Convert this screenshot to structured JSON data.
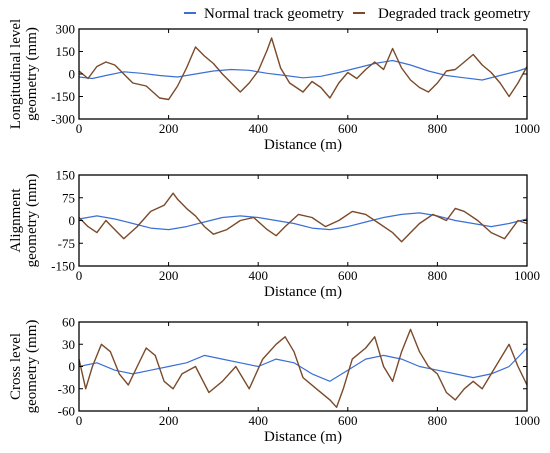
{
  "legend": {
    "normal_label": "Normal track geometry",
    "degraded_label": "Degraded track geometry"
  },
  "colors": {
    "normal": "#3b6fd6",
    "degraded": "#7a4a2a"
  },
  "chart_data": [
    {
      "type": "line",
      "xlabel": "Distance (m)",
      "ylabel_lines": [
        "Longitudinal level",
        "geometry (mm)"
      ],
      "xlim": [
        0,
        1000
      ],
      "ylim": [
        -300,
        300
      ],
      "x_ticks": [
        0,
        200,
        400,
        600,
        800,
        1000
      ],
      "y_ticks": [
        300,
        150,
        0,
        -150,
        -300
      ],
      "series": [
        {
          "name": "Normal track geometry",
          "x": [
            0,
            30,
            60,
            100,
            140,
            180,
            220,
            260,
            300,
            340,
            380,
            420,
            460,
            500,
            540,
            580,
            620,
            660,
            700,
            740,
            780,
            820,
            860,
            900,
            940,
            980,
            1000
          ],
          "y": [
            -20,
            -30,
            -10,
            15,
            5,
            -10,
            -20,
            0,
            20,
            30,
            25,
            5,
            -10,
            -25,
            -15,
            10,
            40,
            70,
            90,
            60,
            20,
            -10,
            -25,
            -40,
            -10,
            20,
            40
          ]
        },
        {
          "name": "Degraded track geometry",
          "x": [
            0,
            20,
            40,
            60,
            80,
            100,
            120,
            150,
            180,
            200,
            220,
            240,
            260,
            280,
            300,
            320,
            340,
            360,
            380,
            400,
            420,
            430,
            450,
            470,
            500,
            520,
            540,
            560,
            580,
            600,
            620,
            640,
            660,
            680,
            700,
            720,
            740,
            760,
            780,
            800,
            820,
            840,
            860,
            880,
            900,
            920,
            940,
            960,
            980,
            1000
          ],
          "y": [
            20,
            -30,
            50,
            80,
            60,
            0,
            -60,
            -80,
            -160,
            -170,
            -80,
            40,
            180,
            120,
            70,
            0,
            -60,
            -120,
            -60,
            20,
            160,
            240,
            40,
            -60,
            -120,
            -50,
            -90,
            -160,
            -60,
            10,
            -30,
            30,
            80,
            30,
            170,
            40,
            -40,
            -90,
            -120,
            -60,
            20,
            30,
            80,
            130,
            60,
            10,
            -60,
            -150,
            -60,
            50
          ]
        }
      ]
    },
    {
      "type": "line",
      "xlabel": "Distance (m)",
      "ylabel_lines": [
        "Alignment",
        "geometry (mm)"
      ],
      "xlim": [
        0,
        1000
      ],
      "ylim": [
        -150,
        150
      ],
      "x_ticks": [
        0,
        200,
        400,
        600,
        800,
        1000
      ],
      "y_ticks": [
        150,
        75,
        0,
        -75,
        -150
      ],
      "series": [
        {
          "name": "Normal track geometry",
          "x": [
            0,
            40,
            80,
            120,
            160,
            200,
            240,
            280,
            320,
            360,
            400,
            440,
            480,
            520,
            560,
            600,
            640,
            680,
            720,
            760,
            800,
            840,
            880,
            920,
            960,
            1000
          ],
          "y": [
            5,
            15,
            5,
            -10,
            -25,
            -30,
            -20,
            -5,
            10,
            15,
            10,
            0,
            -10,
            -25,
            -30,
            -20,
            -5,
            10,
            20,
            25,
            15,
            0,
            -10,
            -20,
            -10,
            5
          ]
        },
        {
          "name": "Degraded track geometry",
          "x": [
            0,
            20,
            40,
            60,
            80,
            100,
            130,
            160,
            190,
            210,
            220,
            240,
            260,
            280,
            300,
            330,
            360,
            390,
            420,
            440,
            460,
            490,
            520,
            550,
            580,
            610,
            640,
            670,
            700,
            720,
            740,
            760,
            790,
            820,
            840,
            860,
            890,
            920,
            950,
            980,
            1000
          ],
          "y": [
            10,
            -20,
            -40,
            0,
            -30,
            -60,
            -20,
            30,
            50,
            90,
            70,
            40,
            15,
            -20,
            -45,
            -30,
            0,
            10,
            -30,
            -50,
            -20,
            20,
            10,
            -20,
            0,
            30,
            20,
            -10,
            -40,
            -70,
            -40,
            -10,
            20,
            0,
            40,
            30,
            0,
            -40,
            -60,
            0,
            -10
          ]
        }
      ]
    },
    {
      "type": "line",
      "xlabel": "Distance (m)",
      "ylabel_lines": [
        "Cross level",
        "geometry (mm)"
      ],
      "xlim": [
        0,
        1000
      ],
      "ylim": [
        -60,
        60
      ],
      "x_ticks": [
        0,
        200,
        400,
        600,
        800,
        1000
      ],
      "y_ticks": [
        60,
        30,
        0,
        -30,
        -60
      ],
      "series": [
        {
          "name": "Normal track geometry",
          "x": [
            0,
            40,
            80,
            120,
            160,
            200,
            240,
            280,
            320,
            360,
            400,
            440,
            480,
            520,
            560,
            600,
            640,
            680,
            720,
            760,
            800,
            840,
            880,
            920,
            960,
            1000
          ],
          "y": [
            0,
            5,
            -5,
            -10,
            -5,
            0,
            5,
            15,
            10,
            5,
            0,
            10,
            5,
            -10,
            -20,
            -5,
            10,
            15,
            10,
            0,
            -5,
            -10,
            -15,
            -10,
            0,
            25
          ]
        },
        {
          "name": "Degraded track geometry",
          "x": [
            0,
            15,
            30,
            50,
            70,
            90,
            110,
            130,
            150,
            170,
            190,
            210,
            230,
            260,
            290,
            320,
            350,
            380,
            410,
            440,
            460,
            480,
            500,
            530,
            560,
            575,
            590,
            610,
            640,
            660,
            680,
            700,
            720,
            740,
            760,
            780,
            800,
            820,
            840,
            860,
            880,
            900,
            920,
            940,
            960,
            980,
            1000
          ],
          "y": [
            10,
            -30,
            0,
            30,
            20,
            -10,
            -25,
            0,
            25,
            15,
            -20,
            -30,
            -10,
            0,
            -35,
            -20,
            0,
            -30,
            10,
            30,
            40,
            20,
            -15,
            -30,
            -45,
            -55,
            -30,
            10,
            25,
            40,
            0,
            -20,
            20,
            50,
            20,
            0,
            -10,
            -35,
            -45,
            -30,
            -20,
            -30,
            -10,
            10,
            30,
            0,
            -25
          ]
        }
      ]
    }
  ]
}
